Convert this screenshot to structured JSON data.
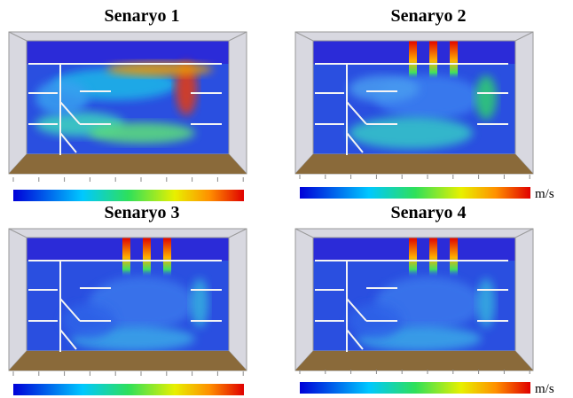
{
  "panels": [
    {
      "title": "Senaryo 1"
    },
    {
      "title": "Senaryo 2",
      "unit": "m/s"
    },
    {
      "title": "Senaryo 3"
    },
    {
      "title": "Senaryo 4",
      "unit": "m/s"
    }
  ]
}
